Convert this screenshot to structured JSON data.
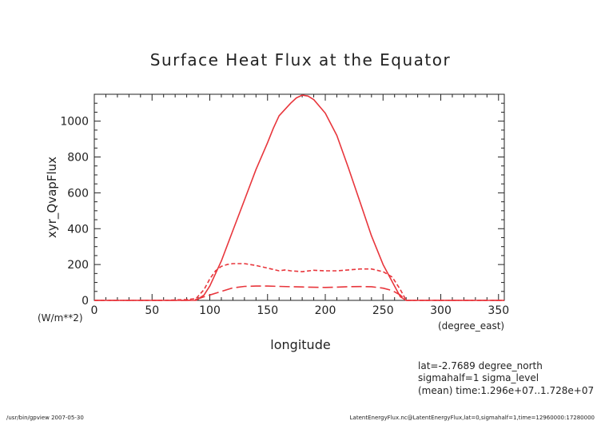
{
  "colors": {
    "series": "#e8363c",
    "axis": "#222222",
    "background": "#ffffff"
  },
  "chart_data": {
    "type": "line",
    "title": "Surface Heat Flux at the Equator",
    "xlabel": "longitude",
    "ylabel": "xyr_QvapFlux",
    "x_units": "(degree_east)",
    "y_units": "(W/m**2)",
    "xlim": [
      0,
      355
    ],
    "ylim": [
      0,
      1150
    ],
    "x_ticks": [
      0,
      50,
      100,
      150,
      200,
      250,
      300,
      350
    ],
    "y_ticks": [
      0,
      200,
      400,
      600,
      800,
      1000
    ],
    "grid": false,
    "legend": "none",
    "series": [
      {
        "style": "solid",
        "x": [
          0,
          20,
          40,
          60,
          80,
          88,
          95,
          100,
          110,
          120,
          130,
          140,
          150,
          155,
          160,
          170,
          175,
          180,
          185,
          190,
          200,
          210,
          220,
          230,
          240,
          250,
          260,
          265,
          270,
          275,
          290,
          310,
          330,
          355
        ],
        "y": [
          0,
          0,
          0,
          0,
          0,
          0,
          30,
          80,
          220,
          390,
          560,
          730,
          880,
          960,
          1030,
          1100,
          1130,
          1145,
          1140,
          1120,
          1045,
          920,
          740,
          550,
          360,
          200,
          80,
          20,
          0,
          0,
          0,
          0,
          0,
          0
        ]
      },
      {
        "style": "short-dash",
        "x": [
          0,
          20,
          40,
          60,
          80,
          88,
          95,
          100,
          105,
          110,
          115,
          120,
          130,
          140,
          150,
          160,
          165,
          170,
          180,
          190,
          200,
          210,
          220,
          230,
          240,
          250,
          258,
          265,
          270,
          275,
          290,
          310,
          330,
          355
        ],
        "y": [
          0,
          0,
          0,
          0,
          5,
          10,
          60,
          120,
          165,
          190,
          200,
          205,
          205,
          195,
          180,
          165,
          170,
          165,
          160,
          168,
          165,
          165,
          170,
          175,
          175,
          160,
          130,
          60,
          0,
          0,
          0,
          0,
          0,
          0
        ]
      },
      {
        "style": "long-dash",
        "x": [
          0,
          20,
          40,
          60,
          80,
          88,
          95,
          100,
          110,
          120,
          130,
          140,
          150,
          160,
          170,
          180,
          190,
          200,
          210,
          220,
          230,
          240,
          250,
          258,
          265,
          270,
          275,
          290,
          310,
          330,
          355
        ],
        "y": [
          0,
          0,
          0,
          0,
          0,
          5,
          20,
          30,
          50,
          70,
          78,
          80,
          80,
          78,
          76,
          75,
          73,
          72,
          74,
          76,
          77,
          76,
          68,
          55,
          30,
          0,
          0,
          0,
          0,
          0,
          0
        ]
      }
    ]
  },
  "info": {
    "lat": "lat=-2.7689 degree_north",
    "sigmahalf": "sigmahalf=1 sigma_level",
    "mean": "(mean) time:1.296e+07..1.728e+07"
  },
  "footer": {
    "program": "/usr/bin/gpview  2007-05-30",
    "source": "LatentEnergyFlux.nc@LatentEnergyFlux,lat=0,sigmahalf=1,time=12960000:17280000"
  }
}
